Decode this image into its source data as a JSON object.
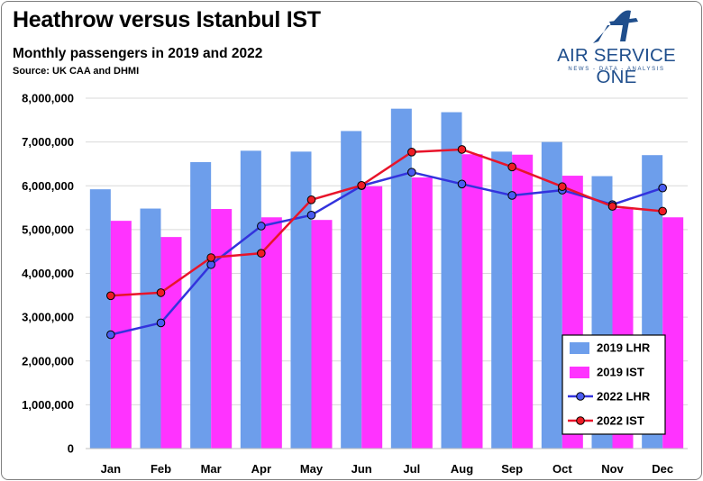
{
  "header": {
    "title": "Heathrow versus Istanbul IST",
    "subtitle": "Monthly passengers in 2019 and 2022",
    "source": "Source: UK CAA and DHMI"
  },
  "logo": {
    "name": "AIR SERVICE ONE",
    "tagline": "NEWS - DATA - ANALYSIS",
    "icon": "stylized-a-wing-logo",
    "color": "#1f4e8c"
  },
  "chart_data": {
    "type": "bar",
    "categories": [
      "Jan",
      "Feb",
      "Mar",
      "Apr",
      "May",
      "Jun",
      "Jul",
      "Aug",
      "Sep",
      "Oct",
      "Nov",
      "Dec"
    ],
    "ylim": [
      0,
      8000000
    ],
    "yticks": [
      0,
      1000000,
      2000000,
      3000000,
      4000000,
      5000000,
      6000000,
      7000000,
      8000000
    ],
    "ytick_labels": [
      "0",
      "1,000,000",
      "2,000,000",
      "3,000,000",
      "4,000,000",
      "5,000,000",
      "6,000,000",
      "7,000,000",
      "8,000,000"
    ],
    "grid": true,
    "legend_position": "bottom-right",
    "series": [
      {
        "name": "2019 LHR",
        "kind": "bar",
        "color": "#6d9eeb",
        "values": [
          5920000,
          5480000,
          6540000,
          6800000,
          6780000,
          7250000,
          7760000,
          7680000,
          6780000,
          7000000,
          6220000,
          6700000
        ]
      },
      {
        "name": "2019 IST",
        "kind": "bar",
        "color": "#ff33ff",
        "values": [
          5200000,
          4830000,
          5470000,
          5280000,
          5220000,
          5990000,
          6190000,
          6720000,
          6710000,
          6230000,
          5480000,
          5280000
        ]
      },
      {
        "name": "2022 LHR",
        "kind": "line",
        "color": "#3333dd",
        "marker_fill": "#4a5cf0",
        "values": [
          2600000,
          2870000,
          4200000,
          5080000,
          5330000,
          6000000,
          6310000,
          6040000,
          5780000,
          5900000,
          5570000,
          5950000
        ]
      },
      {
        "name": "2022 IST",
        "kind": "line",
        "color": "#e8142a",
        "marker_fill": "#ee1c25",
        "values": [
          3490000,
          3560000,
          4360000,
          4460000,
          5680000,
          6010000,
          6770000,
          6830000,
          6430000,
          5980000,
          5530000,
          5420000
        ]
      }
    ]
  }
}
